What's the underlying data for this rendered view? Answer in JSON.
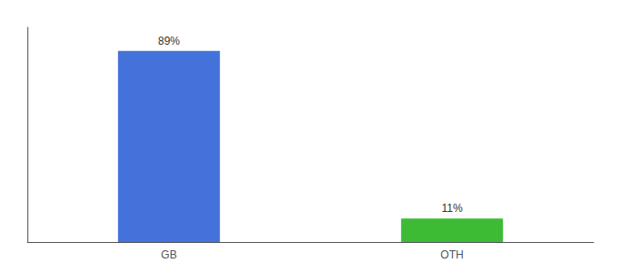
{
  "chart_data": {
    "type": "bar",
    "categories": [
      "GB",
      "OTH"
    ],
    "values": [
      89,
      11
    ],
    "value_labels": [
      "89%",
      "11%"
    ],
    "colors": [
      "#4472db",
      "#3dbb35"
    ],
    "ylim": [
      0,
      100
    ],
    "grid": false,
    "data_labels": true,
    "tick_labels": "x"
  }
}
